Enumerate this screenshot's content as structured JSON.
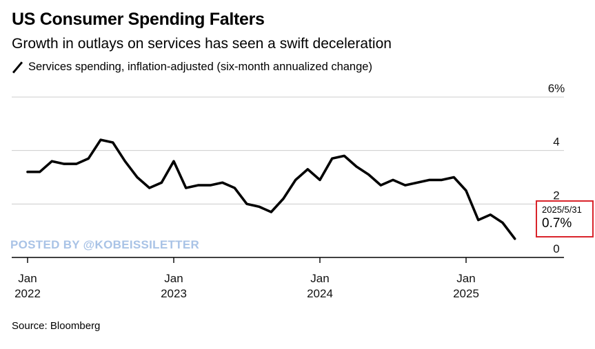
{
  "header": {
    "title": "US Consumer Spending Falters",
    "subtitle": "Growth in outlays on services has seen a swift deceleration"
  },
  "legend": {
    "label": "Services spending, inflation-adjusted (six-month annualized change)"
  },
  "source": "Source: Bloomberg",
  "watermark": "POSTED BY @KOBEISSILETTER",
  "annotation": {
    "date": "2025/5/31",
    "value": "0.7%"
  },
  "colors": {
    "line": "#000000",
    "grid": "#cccccc",
    "annotation_border": "#d9232a",
    "watermark": "#a9c3e6"
  },
  "chart_data": {
    "type": "line",
    "title": "US Consumer Spending Falters",
    "subtitle": "Growth in outlays on services has seen a swift deceleration",
    "ylim": [
      0,
      6
    ],
    "y_ticks": [
      {
        "value": 0,
        "label": "0"
      },
      {
        "value": 2,
        "label": "2"
      },
      {
        "value": 4,
        "label": "4"
      },
      {
        "value": 6,
        "label": "6%"
      }
    ],
    "x_ticks": [
      {
        "date": "2022-01",
        "line1": "Jan",
        "line2": "2022"
      },
      {
        "date": "2023-01",
        "line1": "Jan",
        "line2": "2023"
      },
      {
        "date": "2024-01",
        "line1": "Jan",
        "line2": "2024"
      },
      {
        "date": "2025-01",
        "line1": "Jan",
        "line2": "2025"
      }
    ],
    "grid": true,
    "series": [
      {
        "name": "Services spending, inflation-adjusted (six-month annualized change)",
        "x": [
          "2022-01",
          "2022-02",
          "2022-03",
          "2022-04",
          "2022-05",
          "2022-06",
          "2022-07",
          "2022-08",
          "2022-09",
          "2022-10",
          "2022-11",
          "2022-12",
          "2023-01",
          "2023-02",
          "2023-03",
          "2023-04",
          "2023-05",
          "2023-06",
          "2023-07",
          "2023-08",
          "2023-09",
          "2023-10",
          "2023-11",
          "2023-12",
          "2024-01",
          "2024-02",
          "2024-03",
          "2024-04",
          "2024-05",
          "2024-06",
          "2024-07",
          "2024-08",
          "2024-09",
          "2024-10",
          "2024-11",
          "2024-12",
          "2025-01",
          "2025-02",
          "2025-03",
          "2025-04",
          "2025-05"
        ],
        "values": [
          3.2,
          3.2,
          3.6,
          3.5,
          3.5,
          3.7,
          4.4,
          4.3,
          3.6,
          3.0,
          2.6,
          2.8,
          3.6,
          2.6,
          2.7,
          2.7,
          2.8,
          2.6,
          2.0,
          1.9,
          1.7,
          2.2,
          2.9,
          3.3,
          2.9,
          3.7,
          3.8,
          3.4,
          3.1,
          2.7,
          2.9,
          2.7,
          2.8,
          2.9,
          2.9,
          3.0,
          2.5,
          1.4,
          1.6,
          1.3,
          0.7
        ]
      }
    ]
  }
}
